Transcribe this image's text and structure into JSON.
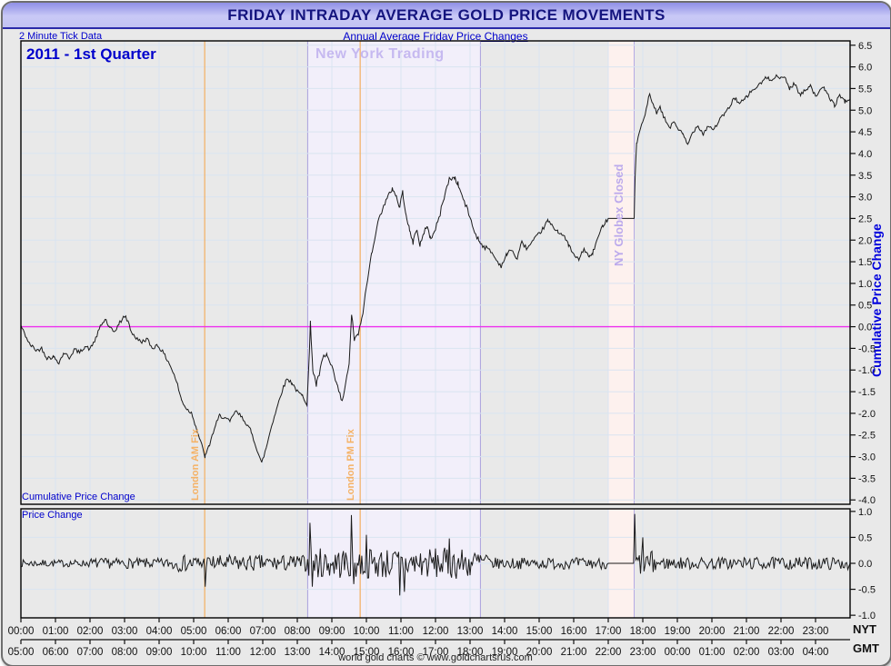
{
  "window": {
    "title": "FRIDAY INTRADAY AVERAGE GOLD PRICE MOVEMENTS",
    "top_left_note": "2 Minute Tick Data",
    "subtitle": "Annual Average Friday Price Changes",
    "footer": "world gold charts © www.goldchartsrus.com"
  },
  "labels": {
    "period": "2011 - 1st Quarter",
    "ny_trading": "New York Trading",
    "globex_closed": "NY Globex Closed",
    "london_am_fix": "London AM Fix",
    "london_pm_fix": "London PM Fix",
    "cumulative_axis": "Cumulative Price Change",
    "cumulative_inline": "Cumulative Price Change",
    "price_change": "Price Change",
    "tz_top": "NYT",
    "tz_bottom": "GMT"
  },
  "colors": {
    "title_text": "#14147e",
    "blue_text": "#0000cc",
    "grid": "#d9e4f1",
    "series": "#1b1b1b",
    "zero_line": "#ee2fee",
    "fix_line": "#f2b36b",
    "fix_text": "#f5b266",
    "ny_band_fill": "#f2effa",
    "ny_band_border": "#a9a0dc",
    "globex_band_fill": "#fdf1ee",
    "globex_band_border": "#b5aae4",
    "axis_text": "#111111",
    "plot_border": "#000000"
  },
  "chart_data": [
    {
      "type": "line",
      "title": "Cumulative Price Change",
      "x_unit": "hours NYT",
      "xlim": [
        0,
        24
      ],
      "ylim": [
        -4.1,
        6.6
      ],
      "ytick_labels": [
        "6.5",
        "6.0",
        "5.5",
        "5.0",
        "4.5",
        "4.0",
        "3.5",
        "3.0",
        "2.5",
        "2.0",
        "1.5",
        "1.0",
        "0.5",
        "0.0",
        "-0.5",
        "-1.0",
        "-1.5",
        "-2.0",
        "-2.5",
        "-3.0",
        "-3.5",
        "-4.0"
      ],
      "zero_line": 0.0,
      "grid": true,
      "keypoints": [
        [
          0,
          0.02
        ],
        [
          0.1,
          -0.15
        ],
        [
          0.25,
          -0.4
        ],
        [
          0.45,
          -0.55
        ],
        [
          0.6,
          -0.5
        ],
        [
          0.75,
          -0.72
        ],
        [
          0.95,
          -0.7
        ],
        [
          1.1,
          -0.82
        ],
        [
          1.25,
          -0.6
        ],
        [
          1.4,
          -0.72
        ],
        [
          1.55,
          -0.52
        ],
        [
          1.7,
          -0.6
        ],
        [
          1.85,
          -0.45
        ],
        [
          2.0,
          -0.52
        ],
        [
          2.15,
          -0.3
        ],
        [
          2.3,
          0.0
        ],
        [
          2.45,
          0.18
        ],
        [
          2.55,
          -0.02
        ],
        [
          2.7,
          -0.12
        ],
        [
          2.85,
          0.08
        ],
        [
          3.0,
          0.25
        ],
        [
          3.1,
          0.12
        ],
        [
          3.2,
          -0.12
        ],
        [
          3.35,
          -0.28
        ],
        [
          3.5,
          -0.35
        ],
        [
          3.65,
          -0.28
        ],
        [
          3.8,
          -0.5
        ],
        [
          3.95,
          -0.42
        ],
        [
          4.1,
          -0.58
        ],
        [
          4.3,
          -0.85
        ],
        [
          4.5,
          -1.25
        ],
        [
          4.65,
          -1.7
        ],
        [
          4.8,
          -1.9
        ],
        [
          4.95,
          -2.0
        ],
        [
          5.1,
          -2.4
        ],
        [
          5.2,
          -2.65
        ],
        [
          5.33,
          -3.0
        ],
        [
          5.45,
          -2.75
        ],
        [
          5.6,
          -2.35
        ],
        [
          5.75,
          -2.05
        ],
        [
          5.9,
          -2.1
        ],
        [
          6.05,
          -2.2
        ],
        [
          6.2,
          -1.95
        ],
        [
          6.35,
          -2.05
        ],
        [
          6.5,
          -2.2
        ],
        [
          6.65,
          -2.4
        ],
        [
          6.8,
          -2.75
        ],
        [
          6.97,
          -3.15
        ],
        [
          7.1,
          -2.8
        ],
        [
          7.25,
          -2.3
        ],
        [
          7.4,
          -1.9
        ],
        [
          7.55,
          -1.5
        ],
        [
          7.7,
          -1.2
        ],
        [
          7.85,
          -1.3
        ],
        [
          8.0,
          -1.5
        ],
        [
          8.15,
          -1.6
        ],
        [
          8.28,
          -1.78
        ],
        [
          8.35,
          -0.6
        ],
        [
          8.38,
          0.08
        ],
        [
          8.45,
          -1.0
        ],
        [
          8.55,
          -1.35
        ],
        [
          8.65,
          -1.05
        ],
        [
          8.75,
          -0.7
        ],
        [
          8.85,
          -0.65
        ],
        [
          9.0,
          -0.95
        ],
        [
          9.15,
          -1.35
        ],
        [
          9.3,
          -1.75
        ],
        [
          9.4,
          -1.3
        ],
        [
          9.5,
          -0.9
        ],
        [
          9.57,
          0.3
        ],
        [
          9.65,
          -0.3
        ],
        [
          9.75,
          -0.2
        ],
        [
          9.82,
          0.0
        ],
        [
          9.9,
          0.35
        ],
        [
          10.0,
          0.9
        ],
        [
          10.15,
          1.7
        ],
        [
          10.3,
          2.3
        ],
        [
          10.45,
          2.7
        ],
        [
          10.6,
          2.95
        ],
        [
          10.75,
          3.2
        ],
        [
          10.85,
          3.05
        ],
        [
          10.95,
          2.75
        ],
        [
          11.05,
          3.1
        ],
        [
          11.15,
          2.6
        ],
        [
          11.25,
          2.2
        ],
        [
          11.35,
          1.95
        ],
        [
          11.45,
          2.25
        ],
        [
          11.55,
          1.9
        ],
        [
          11.65,
          2.1
        ],
        [
          11.75,
          2.35
        ],
        [
          11.85,
          2.05
        ],
        [
          11.95,
          2.15
        ],
        [
          12.1,
          2.5
        ],
        [
          12.25,
          3.0
        ],
        [
          12.4,
          3.4
        ],
        [
          12.55,
          3.45
        ],
        [
          12.65,
          3.3
        ],
        [
          12.8,
          2.95
        ],
        [
          12.95,
          2.65
        ],
        [
          13.1,
          2.25
        ],
        [
          13.25,
          2.0
        ],
        [
          13.4,
          1.85
        ],
        [
          13.6,
          1.75
        ],
        [
          13.75,
          1.55
        ],
        [
          13.9,
          1.4
        ],
        [
          14.05,
          1.65
        ],
        [
          14.2,
          1.8
        ],
        [
          14.35,
          1.55
        ],
        [
          14.5,
          1.95
        ],
        [
          14.65,
          1.8
        ],
        [
          14.8,
          1.95
        ],
        [
          14.95,
          2.1
        ],
        [
          15.1,
          2.25
        ],
        [
          15.25,
          2.45
        ],
        [
          15.4,
          2.3
        ],
        [
          15.55,
          2.2
        ],
        [
          15.7,
          2.1
        ],
        [
          15.85,
          1.9
        ],
        [
          16.0,
          1.65
        ],
        [
          16.15,
          1.55
        ],
        [
          16.3,
          1.8
        ],
        [
          16.45,
          1.6
        ],
        [
          16.55,
          1.7
        ],
        [
          16.7,
          2.05
        ],
        [
          16.85,
          2.35
        ],
        [
          17.0,
          2.5
        ],
        [
          17.75,
          2.5
        ],
        [
          17.78,
          3.5
        ],
        [
          17.82,
          4.2
        ],
        [
          17.9,
          4.5
        ],
        [
          18.0,
          4.7
        ],
        [
          18.1,
          5.0
        ],
        [
          18.2,
          5.4
        ],
        [
          18.3,
          5.1
        ],
        [
          18.4,
          4.95
        ],
        [
          18.5,
          5.05
        ],
        [
          18.6,
          4.85
        ],
        [
          18.7,
          4.7
        ],
        [
          18.8,
          4.6
        ],
        [
          18.9,
          4.75
        ],
        [
          19.0,
          4.6
        ],
        [
          19.15,
          4.45
        ],
        [
          19.3,
          4.2
        ],
        [
          19.45,
          4.5
        ],
        [
          19.6,
          4.65
        ],
        [
          19.75,
          4.45
        ],
        [
          19.9,
          4.65
        ],
        [
          20.05,
          4.55
        ],
        [
          20.2,
          4.75
        ],
        [
          20.35,
          4.9
        ],
        [
          20.5,
          5.05
        ],
        [
          20.65,
          5.3
        ],
        [
          20.8,
          5.15
        ],
        [
          20.95,
          5.25
        ],
        [
          21.1,
          5.4
        ],
        [
          21.25,
          5.5
        ],
        [
          21.4,
          5.6
        ],
        [
          21.55,
          5.75
        ],
        [
          21.7,
          5.7
        ],
        [
          21.85,
          5.8
        ],
        [
          22.0,
          5.72
        ],
        [
          22.1,
          5.78
        ],
        [
          22.25,
          5.5
        ],
        [
          22.4,
          5.62
        ],
        [
          22.55,
          5.35
        ],
        [
          22.7,
          5.45
        ],
        [
          22.85,
          5.6
        ],
        [
          23.0,
          5.3
        ],
        [
          23.1,
          5.45
        ],
        [
          23.25,
          5.5
        ],
        [
          23.4,
          5.3
        ],
        [
          23.55,
          5.1
        ],
        [
          23.7,
          5.35
        ],
        [
          23.85,
          5.2
        ],
        [
          24.0,
          5.25
        ]
      ],
      "noise_envelope": [
        {
          "t0": 0,
          "t1": 8.3,
          "amp": 0.045
        },
        {
          "t0": 8.3,
          "t1": 13.5,
          "amp": 0.06
        },
        {
          "t0": 13.5,
          "t1": 17.0,
          "amp": 0.045
        },
        {
          "t0": 17.0,
          "t1": 17.76,
          "amp": 0
        },
        {
          "t0": 17.76,
          "t1": 24,
          "amp": 0.045
        }
      ],
      "annotations": {
        "bands": [
          {
            "t0": 8.3,
            "t1": 13.3,
            "label": "New York Trading"
          },
          {
            "t0": 17.0,
            "t1": 17.75,
            "label": "NY Globex Closed"
          }
        ],
        "vlines": [
          {
            "t": 5.32,
            "label": "London AM Fix"
          },
          {
            "t": 9.82,
            "label": "London PM Fix"
          }
        ]
      }
    },
    {
      "type": "line",
      "title": "Price Change",
      "x_unit": "hours NYT",
      "xlim": [
        0,
        24
      ],
      "ylim": [
        -1.05,
        1.05
      ],
      "ytick_labels": [
        "1.0",
        "0.5",
        "0.0",
        "-0.5",
        "-1.0"
      ],
      "grid": true,
      "noise_envelope": [
        {
          "t0": 0,
          "t1": 2.0,
          "amp": 0.07
        },
        {
          "t0": 2.0,
          "t1": 4.3,
          "amp": 0.1
        },
        {
          "t0": 4.3,
          "t1": 8.3,
          "amp": 0.16
        },
        {
          "t0": 8.3,
          "t1": 13.5,
          "amp": 0.3
        },
        {
          "t0": 13.5,
          "t1": 17.0,
          "amp": 0.11
        },
        {
          "t0": 17.0,
          "t1": 17.75,
          "amp": 0
        },
        {
          "t0": 17.75,
          "t1": 18.4,
          "amp": 0.24
        },
        {
          "t0": 18.4,
          "t1": 24,
          "amp": 0.12
        }
      ],
      "spikes": [
        {
          "t": 5.33,
          "v": -0.45
        },
        {
          "t": 8.37,
          "v": 0.78
        },
        {
          "t": 8.43,
          "v": -0.45
        },
        {
          "t": 9.57,
          "v": 0.93
        },
        {
          "t": 9.63,
          "v": -0.4
        },
        {
          "t": 10.0,
          "v": 0.55
        },
        {
          "t": 10.95,
          "v": -0.62
        },
        {
          "t": 11.1,
          "v": -0.55
        },
        {
          "t": 12.4,
          "v": 0.48
        },
        {
          "t": 17.78,
          "v": 0.95
        },
        {
          "t": 18.0,
          "v": 0.5
        }
      ]
    }
  ],
  "x_axis": {
    "nyt_labels": [
      "00:00",
      "01:00",
      "02:00",
      "03:00",
      "04:00",
      "05:00",
      "06:00",
      "07:00",
      "08:00",
      "09:00",
      "10:00",
      "11:00",
      "12:00",
      "13:00",
      "14:00",
      "15:00",
      "16:00",
      "17:00",
      "18:00",
      "19:00",
      "20:00",
      "21:00",
      "22:00",
      "23:00"
    ],
    "gmt_labels": [
      "05:00",
      "06:00",
      "07:00",
      "08:00",
      "09:00",
      "10:00",
      "11:00",
      "12:00",
      "13:00",
      "14:00",
      "15:00",
      "16:00",
      "17:00",
      "18:00",
      "19:00",
      "20:00",
      "21:00",
      "22:00",
      "23:00",
      "00:00",
      "01:00",
      "02:00",
      "03:00",
      "04:00"
    ]
  }
}
